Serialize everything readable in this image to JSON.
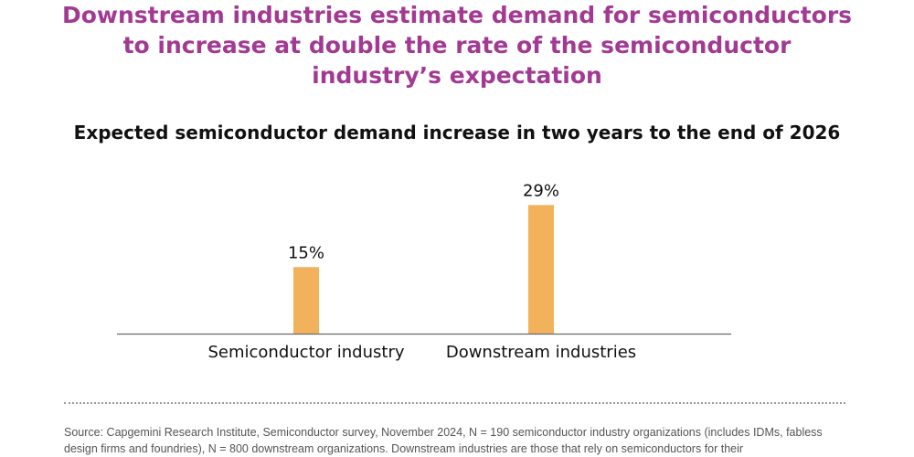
{
  "headline": {
    "lines": [
      "Downstream industries estimate demand for semiconductors",
      "to increase at double the rate of the semiconductor",
      "industry’s expectation"
    ]
  },
  "colors": {
    "headline": "#a23a94",
    "bar": "#f2b25c",
    "axis": "#6b6b6b",
    "text": "#111111"
  },
  "chart_data": {
    "type": "bar",
    "title": "Expected semiconductor demand increase in two years to the end of 2026",
    "xlabel": "",
    "ylabel": "",
    "categories": [
      "Semiconductor industry",
      "Downstream industries"
    ],
    "values": [
      15,
      29
    ],
    "data_labels": [
      "15%",
      "29%"
    ],
    "unit": "%",
    "ylim": [
      0,
      32
    ],
    "grid": false,
    "legend": "none"
  },
  "source": {
    "text": "Source: Capgemini Research Institute, Semiconductor survey, November 2024, N = 190 semiconductor industry organizations (includes IDMs, fabless design firms and foundries), N = 800 downstream organizations. Downstream industries are those that rely on semiconductors for their"
  }
}
